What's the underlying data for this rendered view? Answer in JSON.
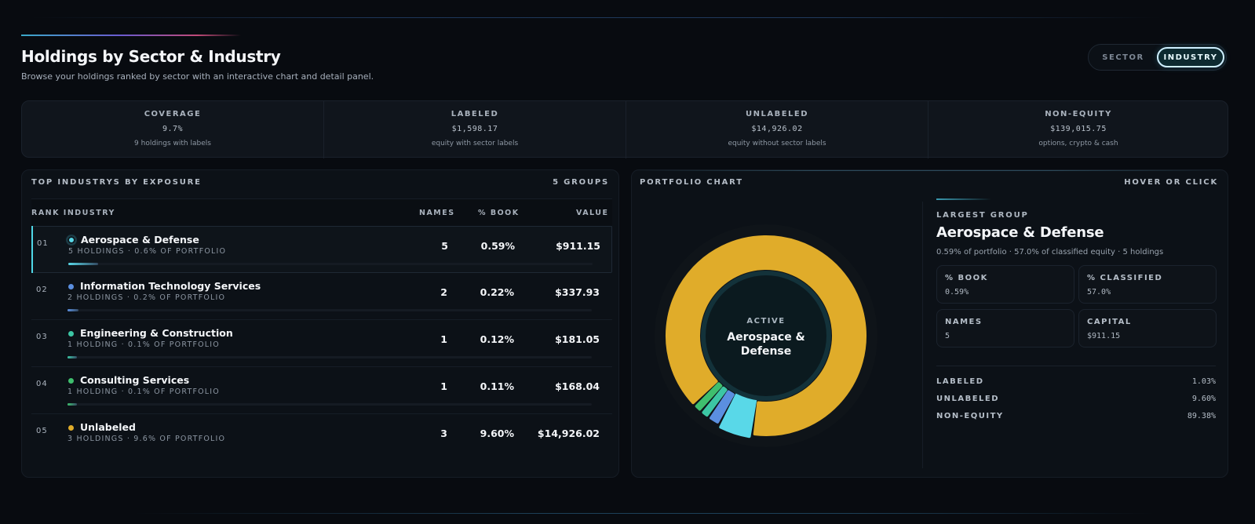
{
  "header": {
    "title": "Holdings by Sector & Industry",
    "subtitle": "Browse your holdings ranked by sector with an interactive chart and detail panel."
  },
  "toggle": {
    "sector_label": "SECTOR",
    "industry_label": "INDUSTRY",
    "selected": "INDUSTRY"
  },
  "stats": [
    {
      "label": "COVERAGE",
      "value": "9.7%",
      "sub": "9 holdings with labels"
    },
    {
      "label": "LABELED",
      "value": "$1,598.17",
      "sub": "equity with sector labels"
    },
    {
      "label": "UNLABELED",
      "value": "$14,926.02",
      "sub": "equity without sector labels"
    },
    {
      "label": "NON-EQUITY",
      "value": "$139,015.75",
      "sub": "options, crypto & cash"
    }
  ],
  "table": {
    "heading": "TOP INDUSTRYS BY EXPOSURE",
    "groups_label": "5 GROUPS",
    "columns": {
      "rank_industry": "RANK INDUSTRY",
      "names": "NAMES",
      "book": "% BOOK",
      "value": "VALUE"
    },
    "rows": [
      {
        "rank": "01",
        "name": "Aerospace & Defense",
        "meta": "5 HOLDINGS · 0.6% OF PORTFOLIO",
        "names": "5",
        "book": "0.59%",
        "value": "$911.15",
        "color": "#59d8e8",
        "share": 0.057
      },
      {
        "rank": "02",
        "name": "Information Technology Services",
        "meta": "2 HOLDINGS · 0.2% OF PORTFOLIO",
        "names": "2",
        "book": "0.22%",
        "value": "$337.93",
        "color": "#5b8fe0",
        "share": 0.021
      },
      {
        "rank": "03",
        "name": "Engineering & Construction",
        "meta": "1 HOLDING · 0.1% OF PORTFOLIO",
        "names": "1",
        "book": "0.12%",
        "value": "$181.05",
        "color": "#3cc6a4",
        "share": 0.011
      },
      {
        "rank": "04",
        "name": "Consulting Services",
        "meta": "1 HOLDING · 0.1% OF PORTFOLIO",
        "names": "1",
        "book": "0.11%",
        "value": "$168.04",
        "color": "#3fbf6e",
        "share": 0.011
      },
      {
        "rank": "05",
        "name": "Unlabeled",
        "meta": "3 HOLDINGS · 9.6% OF PORTFOLIO",
        "names": "3",
        "book": "9.60%",
        "value": "$14,926.02",
        "color": "#e0ac2a",
        "share": 0.0
      }
    ]
  },
  "chart": {
    "heading": "PORTFOLIO CHART",
    "hint": "HOVER OR CLICK",
    "center_label": "ACTIVE",
    "center_line1": "Aerospace &",
    "center_line2": "Defense"
  },
  "chart_data": {
    "type": "pie",
    "categories": [
      "Aerospace & Defense",
      "Information Technology Services",
      "Engineering & Construction",
      "Consulting Services",
      "Unlabeled"
    ],
    "values": [
      911.15,
      337.93,
      181.05,
      168.04,
      14926.02
    ],
    "colors": [
      "#59d8e8",
      "#5b8fe0",
      "#3cc6a4",
      "#3fbf6e",
      "#e0ac2a"
    ],
    "active": "Aerospace & Defense"
  },
  "detail": {
    "label": "LARGEST GROUP",
    "title": "Aerospace & Defense",
    "subtitle": "0.59% of portfolio · 57.0% of classified equity · 5 holdings",
    "cards": [
      {
        "label": "% BOOK",
        "value": "0.59%"
      },
      {
        "label": "% CLASSIFIED",
        "value": "57.0%"
      },
      {
        "label": "NAMES",
        "value": "5"
      },
      {
        "label": "CAPITAL",
        "value": "$911.15"
      }
    ],
    "breakdown": [
      {
        "label": "LABELED",
        "value": "1.03%"
      },
      {
        "label": "UNLABELED",
        "value": "9.60%"
      },
      {
        "label": "NON-EQUITY",
        "value": "89.38%"
      }
    ]
  }
}
